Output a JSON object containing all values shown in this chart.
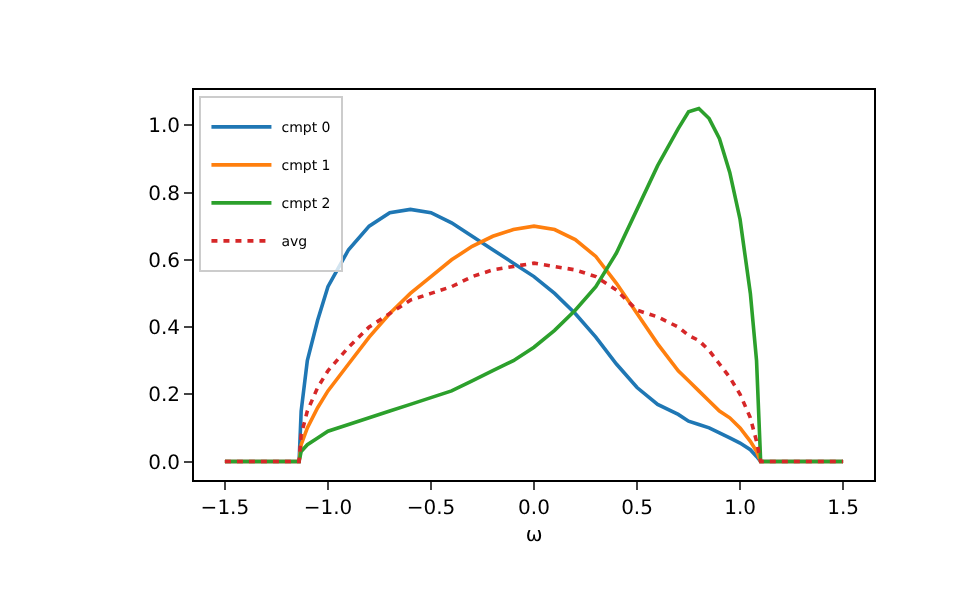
{
  "chart_data": {
    "type": "line",
    "xlabel": "ω",
    "x": [
      -1.5,
      -1.14,
      -1.13,
      -1.1,
      -1.05,
      -1.0,
      -0.9,
      -0.8,
      -0.7,
      -0.6,
      -0.5,
      -0.4,
      -0.3,
      -0.2,
      -0.1,
      0,
      0.1,
      0.2,
      0.3,
      0.4,
      0.5,
      0.6,
      0.7,
      0.75,
      0.8,
      0.85,
      0.9,
      0.95,
      1.0,
      1.05,
      1.08,
      1.1,
      1.5
    ],
    "series": [
      {
        "name": "cmpt 0",
        "color": "#1f77b4",
        "values": [
          0,
          0,
          0.15,
          0.3,
          0.42,
          0.52,
          0.63,
          0.7,
          0.74,
          0.75,
          0.74,
          0.71,
          0.67,
          0.63,
          0.59,
          0.55,
          0.5,
          0.44,
          0.37,
          0.29,
          0.22,
          0.17,
          0.14,
          0.12,
          0.11,
          0.1,
          0.085,
          0.07,
          0.055,
          0.035,
          0.015,
          0,
          0
        ]
      },
      {
        "name": "cmpt 1",
        "color": "#ff7f0e",
        "values": [
          0,
          0,
          0.05,
          0.1,
          0.16,
          0.21,
          0.29,
          0.37,
          0.44,
          0.5,
          0.55,
          0.6,
          0.64,
          0.67,
          0.69,
          0.7,
          0.69,
          0.66,
          0.61,
          0.53,
          0.44,
          0.35,
          0.27,
          0.24,
          0.21,
          0.18,
          0.15,
          0.13,
          0.1,
          0.06,
          0.03,
          0,
          0
        ]
      },
      {
        "name": "cmpt 2",
        "color": "#2ca02c",
        "values": [
          0,
          0,
          0.03,
          0.05,
          0.07,
          0.09,
          0.11,
          0.13,
          0.15,
          0.17,
          0.19,
          0.21,
          0.24,
          0.27,
          0.3,
          0.34,
          0.39,
          0.45,
          0.52,
          0.62,
          0.75,
          0.88,
          0.99,
          1.04,
          1.05,
          1.02,
          0.96,
          0.86,
          0.72,
          0.5,
          0.3,
          0,
          0
        ]
      },
      {
        "name": "avg",
        "color": "#d62728",
        "line_style": "dotted",
        "values": [
          0,
          0,
          0.08,
          0.15,
          0.22,
          0.27,
          0.34,
          0.4,
          0.44,
          0.48,
          0.5,
          0.52,
          0.55,
          0.57,
          0.58,
          0.59,
          0.58,
          0.57,
          0.55,
          0.51,
          0.45,
          0.43,
          0.4,
          0.375,
          0.36,
          0.33,
          0.29,
          0.25,
          0.2,
          0.13,
          0.06,
          0,
          0
        ]
      }
    ],
    "xlim": [
      -1.65,
      1.65
    ],
    "xticks": [
      {
        "value": -1.5,
        "label": "−1.5"
      },
      {
        "value": -1.0,
        "label": "−1.0"
      },
      {
        "value": -0.5,
        "label": "−0.5"
      },
      {
        "value": 0,
        "label": "0.0"
      },
      {
        "value": 0.5,
        "label": "0.5"
      },
      {
        "value": 1.0,
        "label": "1.0"
      },
      {
        "value": 1.5,
        "label": "1.5"
      }
    ],
    "ylim": [
      -0.055,
      1.105
    ],
    "yticks": [
      {
        "value": 0,
        "label": "0.0"
      },
      {
        "value": 0.2,
        "label": "0.2"
      },
      {
        "value": 0.4,
        "label": "0.4"
      },
      {
        "value": 0.6,
        "label": "0.6"
      },
      {
        "value": 0.8,
        "label": "0.8"
      },
      {
        "value": 1.0,
        "label": "1.0"
      }
    ],
    "legend": "top left",
    "line_style": "solid",
    "marker": "none"
  }
}
